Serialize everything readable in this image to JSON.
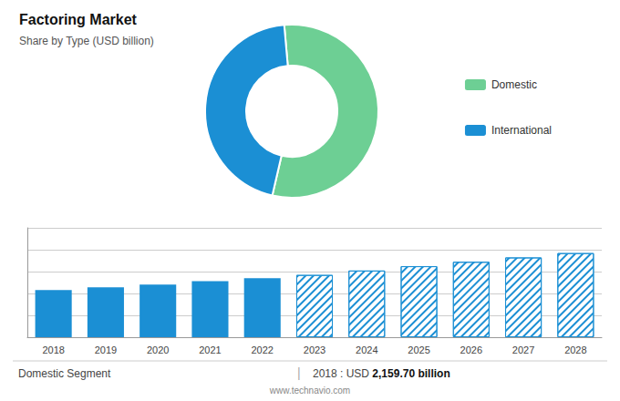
{
  "chart_data": [
    {
      "type": "pie",
      "title": "Factoring Market",
      "subtitle": "Share by Type (USD billion)",
      "categories": [
        "Domestic",
        "International"
      ],
      "values": [
        55,
        45
      ],
      "colors": [
        "#6dcf94",
        "#1b8fd4"
      ],
      "legend": "right"
    },
    {
      "type": "bar",
      "categories": [
        "2018",
        "2019",
        "2020",
        "2021",
        "2022",
        "2023",
        "2024",
        "2025",
        "2026",
        "2027",
        "2028"
      ],
      "series": [
        {
          "color": "#1b8fd4",
          "values": [
            2159.7,
            2280,
            2410,
            2560,
            2700,
            null,
            null,
            null,
            null,
            null,
            null
          ]
        },
        {
          "color": "#1b8fd4",
          "values": [
            null,
            null,
            null,
            null,
            null,
            2850,
            3050,
            3250,
            3450,
            3650,
            3850
          ]
        }
      ],
      "ylim": [
        0,
        5005
      ],
      "yticks": [
        0,
        1000,
        2000,
        3000,
        4000,
        5000
      ],
      "grid": true,
      "tick_labels": "x",
      "annotations": [
        "Domestic Segment",
        "|",
        "2018 : USD ",
        "2,159.70 billion",
        "www.technavio.com"
      ]
    }
  ]
}
